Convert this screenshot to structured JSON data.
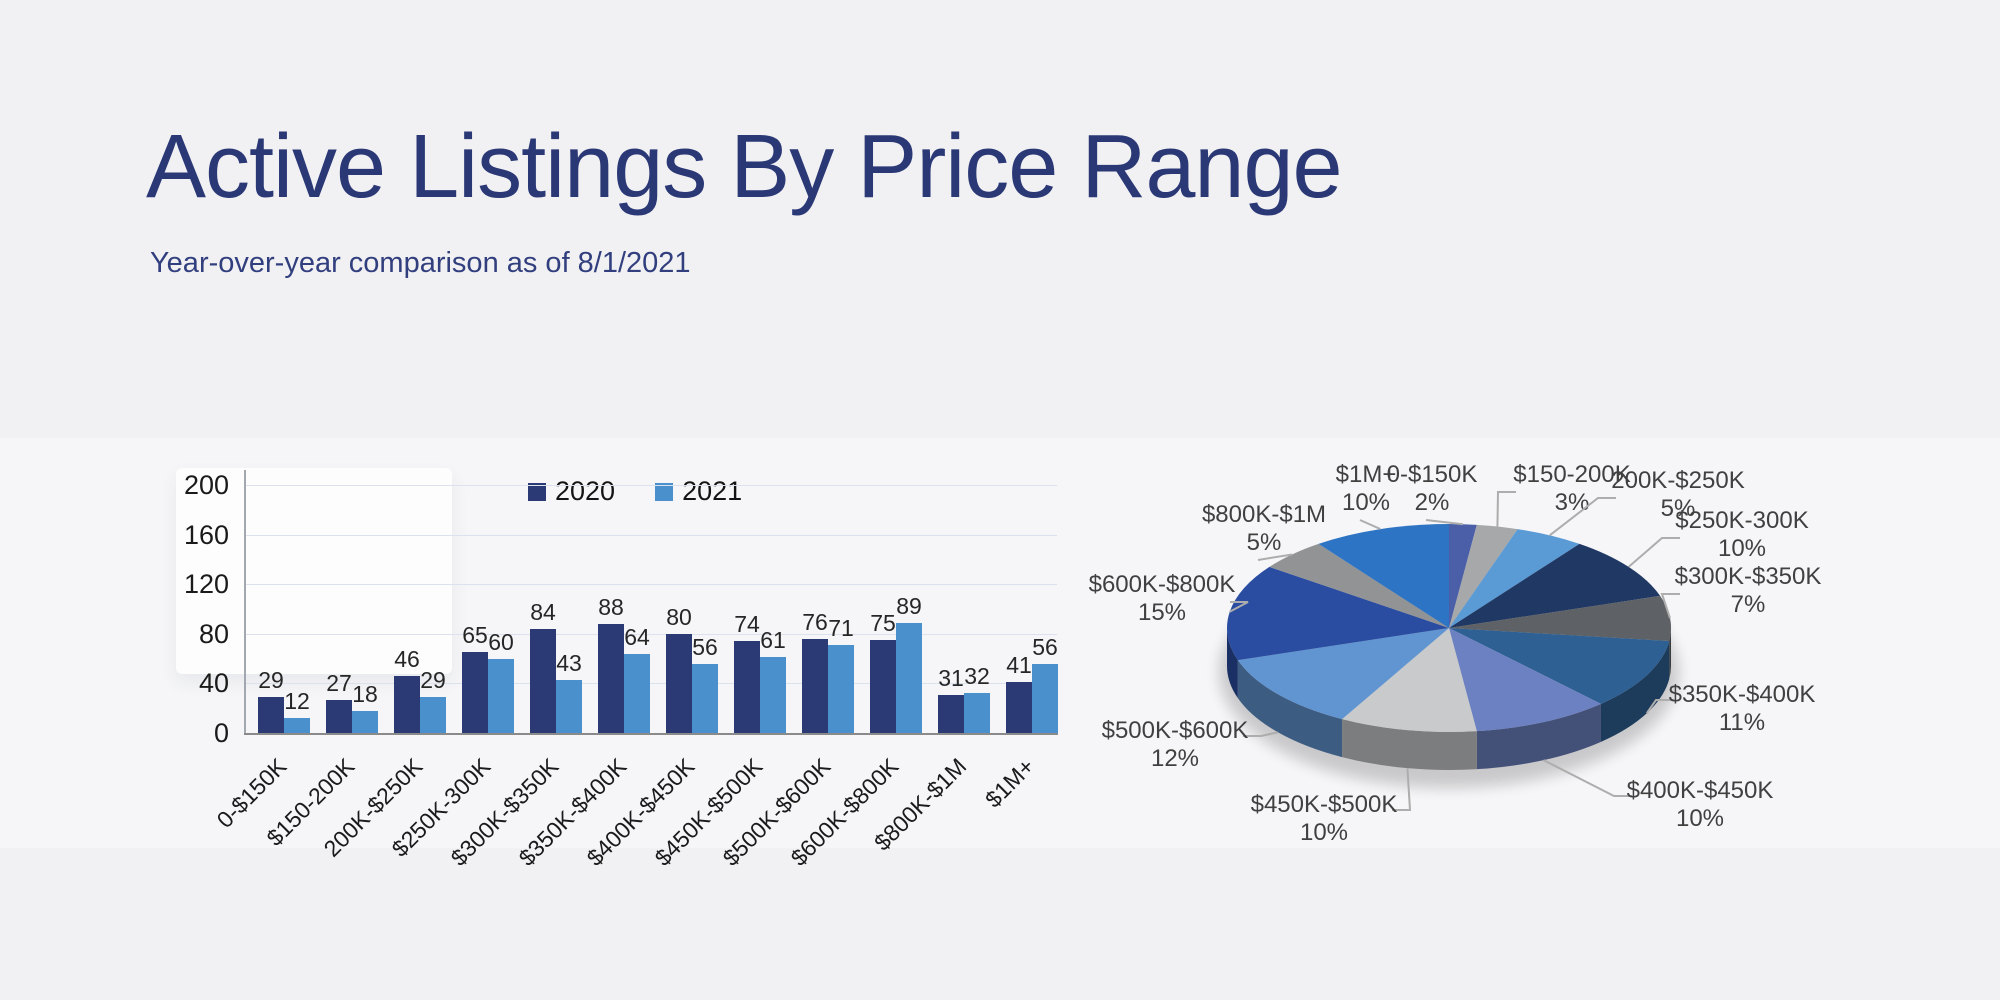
{
  "page": {
    "title": "Active Listings By Price Range",
    "subtitle": "Year-over-year comparison as of 8/1/2021",
    "title_color": "#2b3876",
    "subtitle_color": "#323f7e",
    "background": "#f1f1f3"
  },
  "chart_data": [
    {
      "type": "bar",
      "title": "",
      "categories": [
        "0-$150K",
        "$150-200K",
        "200K-$250K",
        "$250K-300K",
        "$300K-$350K",
        "$350K-$400K",
        "$400K-$450K",
        "$450K-$500K",
        "$500K-$600K",
        "$600K-$800K",
        "$800K-$1M",
        "$1M+"
      ],
      "series": [
        {
          "name": "2020",
          "color": "#2b3a74",
          "values": [
            29,
            27,
            46,
            65,
            84,
            88,
            80,
            74,
            76,
            75,
            31,
            41
          ]
        },
        {
          "name": "2021",
          "color": "#4a90cd",
          "values": [
            12,
            18,
            29,
            60,
            43,
            64,
            56,
            61,
            71,
            89,
            32,
            56
          ]
        }
      ],
      "ylim": [
        0,
        200
      ],
      "yticks": [
        0,
        40,
        80,
        120,
        160,
        200
      ],
      "grid": true,
      "legend_position": "top-center",
      "value_labels": true
    },
    {
      "type": "pie",
      "title": "",
      "style": "3d",
      "start_angle": "top",
      "direction": "clockwise",
      "labels": [
        "0-$150K",
        "$150-200K",
        "200K-$250K",
        "$250K-300K",
        "$300K-$350K",
        "$350K-$400K",
        "$400K-$450K",
        "$450K-$500K",
        "$500K-$600K",
        "$600K-$800K",
        "$800K-$1M",
        "$1M+"
      ],
      "values": [
        2,
        3,
        5,
        10,
        7,
        11,
        10,
        10,
        12,
        15,
        5,
        10
      ],
      "unit": "%",
      "colors": [
        "#4a5fa8",
        "#a6a8aa",
        "#5b9bd5",
        "#1f3864",
        "#5e6266",
        "#2e6093",
        "#6c81c1",
        "#c8cacc",
        "#6195d2",
        "#2a4da1",
        "#919395",
        "#2e74c4"
      ],
      "leader_line_color": "#adadad"
    }
  ]
}
